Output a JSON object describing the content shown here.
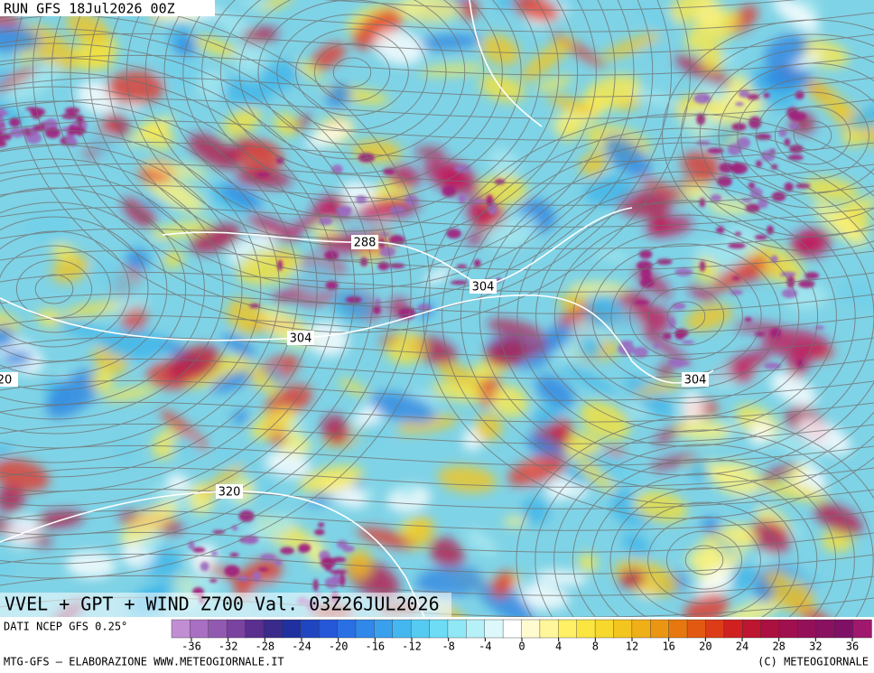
{
  "header": {
    "run": "RUN GFS 18Jul2026 00Z"
  },
  "map": {
    "title": "VVEL + GPT + WIND Z700 Val. 03Z26JUL2026",
    "contour_labels": [
      288,
      304,
      304,
      304,
      320,
      20
    ]
  },
  "legend": {
    "source": "DATI NCEP GFS 0.25°",
    "ticks": [
      -36,
      -32,
      -28,
      -24,
      -20,
      -16,
      -12,
      -8,
      -4,
      0,
      4,
      8,
      12,
      16,
      20,
      24,
      28,
      32,
      36
    ]
  },
  "footer": {
    "left": "MTG-GFS – ELABORAZIONE WWW.METEOGIORNALE.IT",
    "right": "(C) METEOGIORNALE"
  }
}
